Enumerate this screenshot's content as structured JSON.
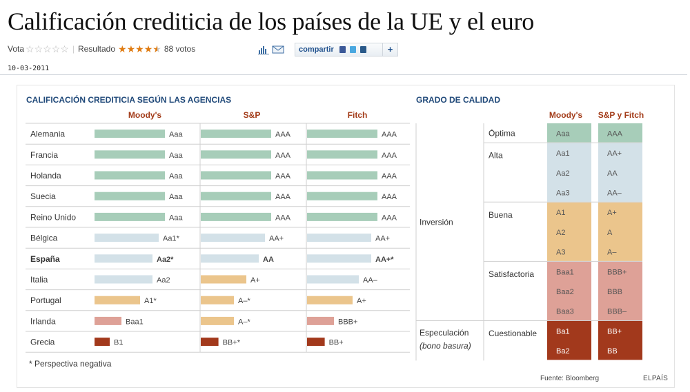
{
  "article": {
    "title": "Calificación crediticia de los países de la UE y el euro",
    "vote_label": "Vota",
    "result_label": "Resultado",
    "votes": "88 votos",
    "share_label": "compartir",
    "date": "10-03-2011",
    "rating_stars": 4.5
  },
  "chart_data": {
    "type": "table",
    "left_title": "CALIFICACIÓN CREDITICIA SEGÚN LAS AGENCIAS",
    "agencies": [
      "Moody's",
      "S&P",
      "Fitch"
    ],
    "countries": [
      {
        "name": "Alemania",
        "bold": false,
        "ratings": [
          "Aaa",
          "AAA",
          "AAA"
        ]
      },
      {
        "name": "Francia",
        "bold": false,
        "ratings": [
          "Aaa",
          "AAA",
          "AAA"
        ]
      },
      {
        "name": "Holanda",
        "bold": false,
        "ratings": [
          "Aaa",
          "AAA",
          "AAA"
        ]
      },
      {
        "name": "Suecia",
        "bold": false,
        "ratings": [
          "Aaa",
          "AAA",
          "AAA"
        ]
      },
      {
        "name": "Reino Unido",
        "bold": false,
        "ratings": [
          "Aaa",
          "AAA",
          "AAA"
        ]
      },
      {
        "name": "Bélgica",
        "bold": false,
        "ratings": [
          "Aa1*",
          "AA+",
          "AA+"
        ]
      },
      {
        "name": "España",
        "bold": true,
        "ratings": [
          "Aa2*",
          "AA",
          "AA+*"
        ]
      },
      {
        "name": "Italia",
        "bold": false,
        "ratings": [
          "Aa2",
          "A+",
          "AA–"
        ]
      },
      {
        "name": "Portugal",
        "bold": false,
        "ratings": [
          "A1*",
          "A–*",
          "A+"
        ]
      },
      {
        "name": "Irlanda",
        "bold": false,
        "ratings": [
          "Baa1",
          "A–*",
          "BBB+"
        ]
      },
      {
        "name": "Grecia",
        "bold": false,
        "ratings": [
          "B1",
          "BB+*",
          "BB+"
        ]
      }
    ],
    "note": "* Perspectiva negativa",
    "right_title": "GRADO DE CALIDAD",
    "scale_headers": [
      "Moody's",
      "S&P y Fitch"
    ],
    "categories": [
      {
        "name": "Inversión",
        "italic": ""
      },
      {
        "name": "Especulación",
        "italic": "(bono basura)"
      }
    ],
    "grades": [
      {
        "label": "Óptima",
        "category": 0,
        "color": "#a7cdb9",
        "steps": [
          [
            "Aaa",
            "AAA"
          ]
        ]
      },
      {
        "label": "Alta",
        "category": 0,
        "color": "#d3e1e8",
        "steps": [
          [
            "Aa1",
            "AA+"
          ],
          [
            "Aa2",
            "AA"
          ],
          [
            "Aa3",
            "AA–"
          ]
        ]
      },
      {
        "label": "Buena",
        "category": 0,
        "color": "#ebc58c",
        "steps": [
          [
            "A1",
            "A+"
          ],
          [
            "A2",
            "A"
          ],
          [
            "A3",
            "A–"
          ]
        ]
      },
      {
        "label": "Satisfactoria",
        "category": 0,
        "color": "#dea197",
        "steps": [
          [
            "Baa1",
            "BBB+"
          ],
          [
            "Baa2",
            "BBB"
          ],
          [
            "Baa3",
            "BBB–"
          ]
        ]
      },
      {
        "label": "Cuestionable",
        "category": 1,
        "color": "#a2391c",
        "steps": [
          [
            "Ba1",
            "BB+"
          ],
          [
            "Ba2",
            "BB"
          ]
        ]
      }
    ],
    "source": "Fuente: Bloomberg",
    "brand": "ELPAÍS",
    "colors": {
      "title_blue": "#214a7a",
      "agency_red": "#a23a17",
      "optima": "#a7cdb9",
      "alta": "#d3e1e8",
      "buena": "#ebc58c",
      "satisfactoria": "#dea197",
      "cuestionable": "#a2391c"
    }
  }
}
